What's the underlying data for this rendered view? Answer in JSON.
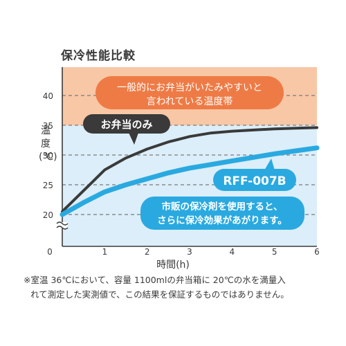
{
  "chart_data": {
    "type": "line",
    "title": "保冷性能比較",
    "xlabel": "時間(h)",
    "ylabel": "温度(℃)",
    "x_ticks": [
      0,
      1,
      2,
      3,
      4,
      5,
      6
    ],
    "y_ticks": [
      20,
      25,
      30,
      35,
      40
    ],
    "xlim": [
      0,
      6
    ],
    "ylim": [
      15,
      44
    ],
    "grid": "dashed-horizontal",
    "bands": [
      {
        "label": "一般的にお弁当がいたみやすいと言われている温度帯",
        "from": 35,
        "to": 44,
        "color": "#f8c7a6"
      },
      {
        "label": "",
        "from": 15,
        "to": 35,
        "color": "#dbeef9"
      }
    ],
    "series": [
      {
        "name": "お弁当のみ",
        "color": "#3a3a3a",
        "x": [
          0,
          0.5,
          1,
          1.5,
          2,
          2.5,
          3,
          3.5,
          4,
          4.5,
          5,
          5.5,
          6
        ],
        "y": [
          20.5,
          24.0,
          27.5,
          29.5,
          31.0,
          32.2,
          33.1,
          33.7,
          34.0,
          34.2,
          34.4,
          34.5,
          34.6
        ]
      },
      {
        "name": "RFF-007B",
        "color": "#2aa9e0",
        "x": [
          0,
          0.5,
          1,
          1.5,
          2,
          2.5,
          3,
          3.5,
          4,
          4.5,
          5,
          5.5,
          6
        ],
        "y": [
          20.0,
          22.0,
          23.8,
          25.0,
          26.0,
          27.0,
          27.8,
          28.4,
          29.0,
          29.6,
          30.2,
          30.7,
          31.2
        ]
      }
    ],
    "annotations": {
      "warm_zone": [
        "一般的にお弁当がいたみやすいと",
        "言われている温度帯"
      ],
      "bento_only": "お弁当のみ",
      "product": "RFF-007B",
      "tip": [
        "市販の保冷剤を使用すると、",
        "さらに保冷効果があがります。"
      ]
    }
  },
  "footnote": {
    "line1": "※室温 36℃において、容量 1100mlの弁当箱に 20℃の水を満量入",
    "line2": "れて測定した実測値で、この結果を保証するものではありません。"
  }
}
